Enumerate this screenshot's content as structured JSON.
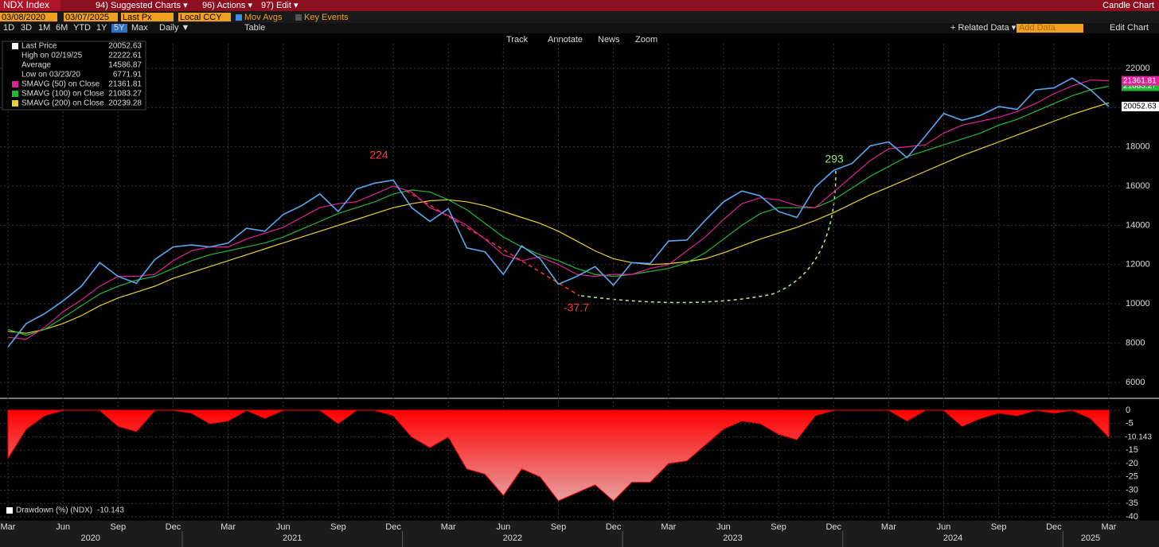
{
  "toolbar": {
    "security": "NDX Index",
    "menus": [
      "94) Suggested Charts ▾",
      "96) Actions ▾",
      "97) Edit ▾"
    ],
    "chart_kind": "Candle Chart",
    "start_date": "03/08/2020",
    "end_date": "03/07/2025",
    "field": "Last Px",
    "currency": "Local CCY",
    "options": [
      "Mov Avgs",
      "Key Events"
    ],
    "periods": [
      "1D",
      "3D",
      "1M",
      "6M",
      "YTD",
      "1Y",
      "5Y",
      "Max"
    ],
    "frequency": "Daily ▼",
    "table": "Table",
    "tools": [
      "Track",
      "Annotate",
      "News",
      "Zoom"
    ],
    "related": "+ Related Data ▾",
    "add_data": "Add Data",
    "edit_chart": "Edit Chart"
  },
  "chart_data": [
    {
      "type": "line",
      "categories": [
        "2020-03",
        "2020-04",
        "2020-05",
        "2020-06",
        "2020-07",
        "2020-08",
        "2020-09",
        "2020-10",
        "2020-11",
        "2020-12",
        "2021-01",
        "2021-02",
        "2021-03",
        "2021-04",
        "2021-05",
        "2021-06",
        "2021-07",
        "2021-08",
        "2021-09",
        "2021-10",
        "2021-11",
        "2021-12",
        "2022-01",
        "2022-02",
        "2022-03",
        "2022-04",
        "2022-05",
        "2022-06",
        "2022-07",
        "2022-08",
        "2022-09",
        "2022-10",
        "2022-11",
        "2022-12",
        "2023-01",
        "2023-02",
        "2023-03",
        "2023-04",
        "2023-05",
        "2023-06",
        "2023-07",
        "2023-08",
        "2023-09",
        "2023-10",
        "2023-11",
        "2023-12",
        "2024-01",
        "2024-02",
        "2024-03",
        "2024-04",
        "2024-05",
        "2024-06",
        "2024-07",
        "2024-08",
        "2024-09",
        "2024-10",
        "2024-11",
        "2024-12",
        "2025-01",
        "2025-02",
        "2025-03"
      ],
      "xticks": [
        {
          "value": "2020-03",
          "label": "Mar"
        },
        {
          "value": "2020-06",
          "label": "Jun"
        },
        {
          "value": "2020-09",
          "label": "Sep"
        },
        {
          "value": "2020-12",
          "label": "Dec"
        },
        {
          "value": "2021-03",
          "label": "Mar"
        },
        {
          "value": "2021-06",
          "label": "Jun"
        },
        {
          "value": "2021-09",
          "label": "Sep"
        },
        {
          "value": "2021-12",
          "label": "Dec"
        },
        {
          "value": "2022-03",
          "label": "Mar"
        },
        {
          "value": "2022-06",
          "label": "Jun"
        },
        {
          "value": "2022-09",
          "label": "Sep"
        },
        {
          "value": "2022-12",
          "label": "Dec"
        },
        {
          "value": "2023-03",
          "label": "Mar"
        },
        {
          "value": "2023-06",
          "label": "Jun"
        },
        {
          "value": "2023-09",
          "label": "Sep"
        },
        {
          "value": "2023-12",
          "label": "Dec"
        },
        {
          "value": "2024-03",
          "label": "Mar"
        },
        {
          "value": "2024-06",
          "label": "Jun"
        },
        {
          "value": "2024-09",
          "label": "Sep"
        },
        {
          "value": "2024-12",
          "label": "Dec"
        },
        {
          "value": "2025-03",
          "label": "Mar"
        }
      ],
      "x_years": [
        "2020",
        "2021",
        "2022",
        "2023",
        "2024",
        "2025"
      ],
      "ylim": [
        5350,
        23250
      ],
      "yticks": [
        6000,
        8000,
        10000,
        12000,
        14000,
        16000,
        18000,
        20000,
        22000
      ],
      "grid": true,
      "series": [
        {
          "name": "Last Price",
          "color": "#5aa8f0",
          "values": [
            7800,
            9000,
            9500,
            10150,
            10900,
            12100,
            11400,
            11050,
            12250,
            12900,
            13000,
            12900,
            13100,
            13850,
            13700,
            14550,
            15000,
            15600,
            14700,
            15850,
            16150,
            16300,
            14900,
            14200,
            14850,
            12850,
            12650,
            11500,
            12950,
            12300,
            11000,
            11400,
            11900,
            10950,
            12100,
            12050,
            13200,
            13250,
            14250,
            15200,
            15750,
            15500,
            14700,
            14400,
            15950,
            16800,
            17150,
            18050,
            18250,
            17450,
            18550,
            19700,
            19350,
            19600,
            20050,
            19900,
            20900,
            21000,
            21500,
            20900,
            20052.63
          ]
        },
        {
          "name": "SMAVG (50)  on Close",
          "color": "#e0209a",
          "values": [
            8300,
            8200,
            8800,
            9600,
            10200,
            10900,
            11400,
            11400,
            11500,
            12200,
            12700,
            12900,
            12900,
            13300,
            13600,
            13900,
            14400,
            14900,
            15100,
            15200,
            15600,
            16000,
            15700,
            14900,
            14500,
            14000,
            13300,
            12500,
            12200,
            12400,
            12000,
            11500,
            11400,
            11500,
            11500,
            11800,
            12000,
            12700,
            13400,
            14300,
            15100,
            15400,
            15300,
            15000,
            14900,
            15700,
            16500,
            17300,
            17900,
            18000,
            18100,
            18700,
            19100,
            19300,
            19500,
            19800,
            20200,
            20700,
            21100,
            21400,
            21361.81
          ]
        },
        {
          "name": "SMAVG (100)  on Close",
          "color": "#22b835",
          "values": [
            8700,
            8400,
            8700,
            9300,
            9900,
            10500,
            10900,
            11200,
            11400,
            11800,
            12200,
            12500,
            12700,
            12900,
            13100,
            13400,
            13800,
            14200,
            14600,
            14900,
            15200,
            15600,
            15800,
            15700,
            15300,
            14800,
            14100,
            13400,
            12900,
            12500,
            12200,
            11800,
            11500,
            11400,
            11500,
            11650,
            11800,
            12100,
            12600,
            13300,
            14000,
            14600,
            14900,
            14900,
            14900,
            15300,
            15900,
            16500,
            17000,
            17500,
            17800,
            18100,
            18400,
            18700,
            19100,
            19400,
            19800,
            20200,
            20600,
            20900,
            21083.27
          ]
        },
        {
          "name": "SMAVG (200)  on Close",
          "color": "#e8d030",
          "values": [
            8600,
            8500,
            8700,
            9000,
            9400,
            9900,
            10300,
            10600,
            10900,
            11300,
            11600,
            11900,
            12200,
            12500,
            12800,
            13100,
            13400,
            13700,
            14000,
            14300,
            14600,
            14900,
            15100,
            15250,
            15300,
            15200,
            15000,
            14700,
            14400,
            14100,
            13700,
            13200,
            12700,
            12300,
            12100,
            12000,
            12050,
            12150,
            12300,
            12600,
            12950,
            13300,
            13600,
            13900,
            14250,
            14650,
            15100,
            15550,
            15950,
            16350,
            16750,
            17150,
            17550,
            17900,
            18250,
            18600,
            18950,
            19300,
            19650,
            19950,
            20239.28
          ]
        }
      ],
      "stats": [
        {
          "label": "High on 02/19/25",
          "value": 22222.61
        },
        {
          "label": "Average",
          "value": 14586.87
        },
        {
          "label": "Low on 03/23/20",
          "value": 6771.91
        }
      ],
      "annotations": [
        {
          "text": "224",
          "color": "#ff3b3b"
        },
        {
          "text": "-37.7",
          "color": "#ff3b3b"
        },
        {
          "text": "293",
          "color": "#9be870"
        }
      ]
    },
    {
      "type": "area",
      "ylim": [
        -41.5,
        3.3
      ],
      "yticks": [
        0,
        -5,
        -10,
        -15,
        -20,
        -25,
        -30,
        -35,
        -40
      ],
      "series": [
        {
          "name": "Drawdown (%) (NDX)",
          "color": "#ff0000",
          "values": [
            -18,
            -7,
            -2,
            0,
            0,
            0,
            -6,
            -8,
            0,
            0,
            -1,
            -5,
            -4,
            0,
            -3,
            0,
            0,
            0,
            -5,
            0,
            0,
            -2,
            -10,
            -14,
            -10,
            -22,
            -24,
            -32,
            -22,
            -25,
            -34,
            -31,
            -28,
            -34,
            -27,
            -27,
            -20,
            -19,
            -13,
            -7,
            -4,
            -5,
            -9,
            -11,
            -2,
            0,
            0,
            0,
            0,
            -4,
            0,
            0,
            -6,
            -3,
            -1,
            -2,
            0,
            -1,
            0,
            -3,
            -10.143
          ]
        }
      ]
    }
  ]
}
